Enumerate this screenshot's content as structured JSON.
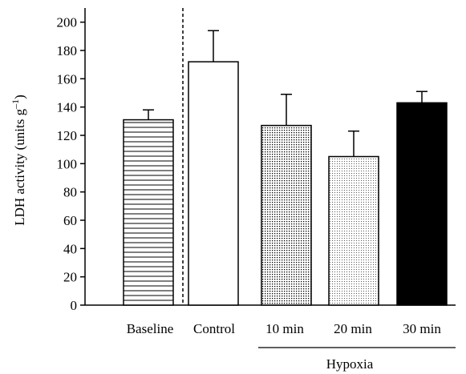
{
  "chart_data": {
    "type": "bar",
    "title": "",
    "ylabel": "LDH activity (units g",
    "ylabel_sup": "–1",
    "ylabel_close": ")",
    "xlabel": "",
    "ylim": [
      0,
      210
    ],
    "yticks": [
      "0",
      "20",
      "40",
      "60",
      "80",
      "100",
      "120",
      "140",
      "160",
      "180",
      "200"
    ],
    "ytick_values": [
      0,
      20,
      40,
      60,
      80,
      100,
      120,
      140,
      160,
      180,
      200
    ],
    "categories": [
      "Baseline",
      "Control",
      "10 min",
      "20 min",
      "30 min"
    ],
    "values": [
      131,
      172,
      127,
      105,
      143
    ],
    "errors": [
      7,
      22,
      22,
      18,
      8
    ],
    "fills": [
      "horizontal-lines",
      "white",
      "dense-dots",
      "light-dots",
      "black"
    ],
    "group": {
      "label": "Hypoxia",
      "members": [
        "10 min",
        "20 min",
        "30 min"
      ]
    },
    "separator_after": "Baseline",
    "grid": false,
    "legend": "none"
  }
}
